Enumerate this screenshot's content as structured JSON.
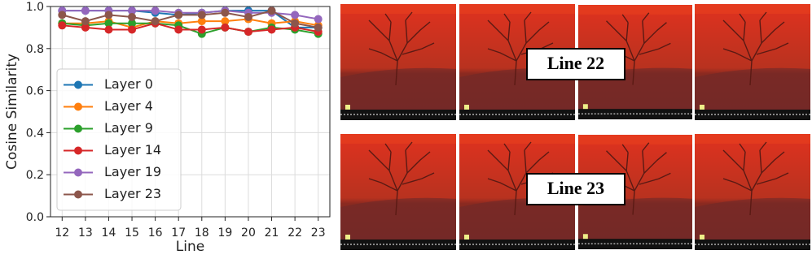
{
  "chart_data": {
    "type": "line",
    "x": [
      12,
      13,
      14,
      15,
      16,
      17,
      18,
      19,
      20,
      21,
      22,
      23
    ],
    "series": [
      {
        "name": "Layer 0",
        "color": "#1f77b4",
        "values": [
          0.98,
          0.98,
          0.98,
          0.98,
          0.97,
          0.96,
          0.97,
          0.98,
          0.98,
          0.98,
          0.9,
          0.9
        ]
      },
      {
        "name": "Layer 4",
        "color": "#ff7f0e",
        "values": [
          0.92,
          0.92,
          0.93,
          0.9,
          0.93,
          0.92,
          0.93,
          0.93,
          0.94,
          0.92,
          0.93,
          0.91
        ]
      },
      {
        "name": "Layer 9",
        "color": "#2ca02c",
        "values": [
          0.92,
          0.91,
          0.92,
          0.92,
          0.92,
          0.91,
          0.87,
          0.9,
          0.88,
          0.9,
          0.89,
          0.87
        ]
      },
      {
        "name": "Layer 14",
        "color": "#d62728",
        "values": [
          0.91,
          0.9,
          0.89,
          0.89,
          0.92,
          0.89,
          0.89,
          0.9,
          0.88,
          0.89,
          0.9,
          0.88
        ]
      },
      {
        "name": "Layer 19",
        "color": "#9467bd",
        "values": [
          0.98,
          0.98,
          0.98,
          0.98,
          0.98,
          0.97,
          0.97,
          0.98,
          0.97,
          0.97,
          0.96,
          0.94
        ]
      },
      {
        "name": "Layer 23",
        "color": "#8c564b",
        "values": [
          0.96,
          0.93,
          0.96,
          0.95,
          0.93,
          0.96,
          0.96,
          0.97,
          0.95,
          0.98,
          0.92,
          0.9
        ]
      }
    ],
    "xlabel": "Line",
    "ylabel": "Cosine Similarity",
    "xlim": [
      11.5,
      23.5
    ],
    "ylim": [
      0,
      1
    ],
    "xticks": [
      12,
      13,
      14,
      15,
      16,
      17,
      18,
      19,
      20,
      21,
      22,
      23
    ],
    "yticks": [
      {
        "value": 0,
        "label": "0.0"
      },
      0.2,
      0.4,
      0.6,
      0.8,
      {
        "value": 1,
        "label": "1.0"
      }
    ],
    "grid": true,
    "legend": "lower left"
  },
  "panels": [
    {
      "label": "Line 22"
    },
    {
      "label": "Line 23"
    }
  ]
}
